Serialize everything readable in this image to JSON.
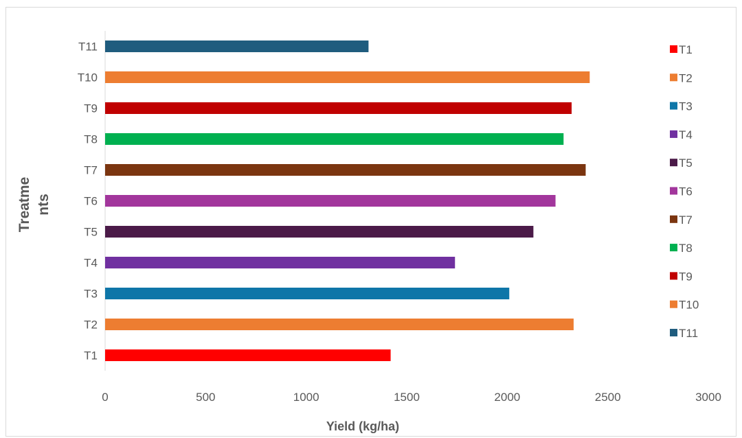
{
  "chart_data": {
    "type": "bar",
    "orientation": "horizontal",
    "categories": [
      "T1",
      "T2",
      "T3",
      "T4",
      "T5",
      "T6",
      "T7",
      "T8",
      "T9",
      "T10",
      "T11"
    ],
    "values": [
      1420,
      2330,
      2010,
      1740,
      2130,
      2240,
      2390,
      2280,
      2320,
      2410,
      1310
    ],
    "colors": [
      "#ff0000",
      "#ed7d31",
      "#0e76a8",
      "#7030a0",
      "#4b1a48",
      "#a2369c",
      "#7b3510",
      "#00b050",
      "#c00000",
      "#ed7d31",
      "#1f5c7e"
    ],
    "xlabel": "Yield (kg/ha)",
    "ylabel_lines": [
      "Treatme",
      "nts"
    ],
    "xlim": [
      0,
      3000
    ],
    "xticks": [
      "0",
      "500",
      "1000",
      "1500",
      "2000",
      "2500",
      "3000"
    ],
    "grid": false,
    "legend": {
      "placement": "right",
      "entries": [
        "T1",
        "T2",
        "T3",
        "T4",
        "T5",
        "T6",
        "T7",
        "T8",
        "T9",
        "T10",
        "T11"
      ]
    }
  }
}
